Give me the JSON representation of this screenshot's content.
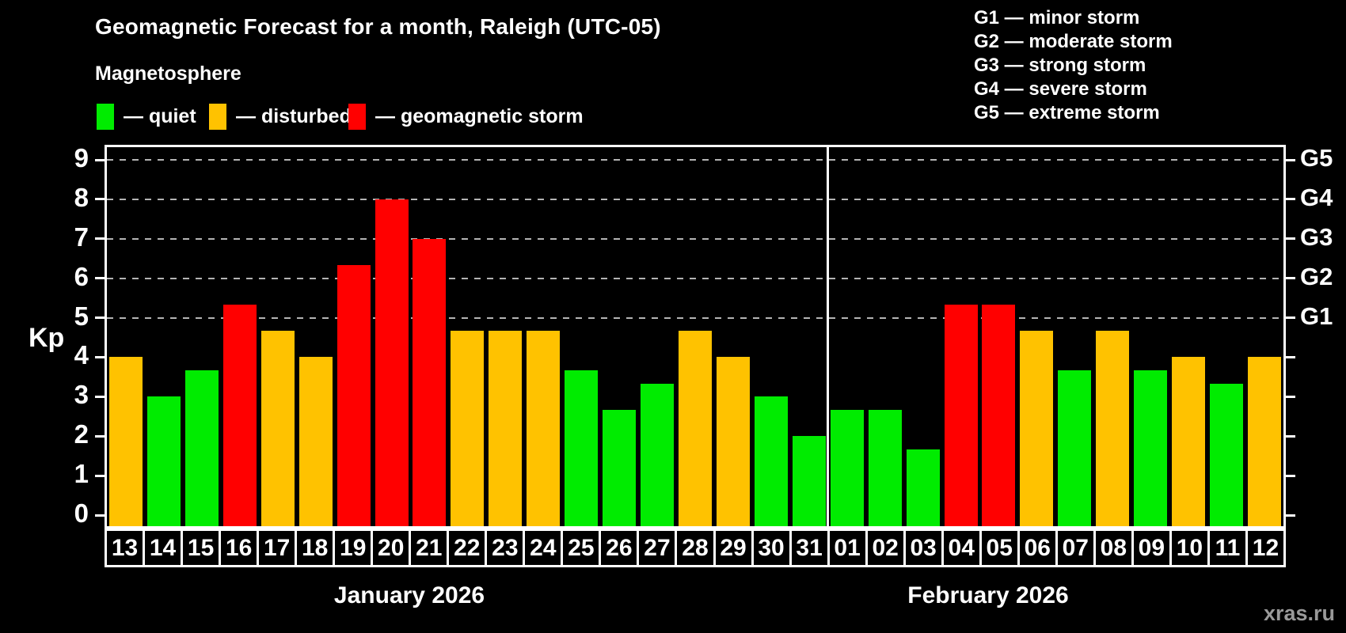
{
  "title": "Geomagnetic Forecast for a month, Raleigh (UTC-05)",
  "subtitle": "Magnetosphere",
  "watermark": "xras.ru",
  "colors": {
    "quiet": "#00EC00",
    "disturbed": "#FFC200",
    "storm": "#FF0000",
    "axis": "#FFFFFF",
    "grid": "#B4B4B4",
    "watermark": "#999999"
  },
  "legend": {
    "items": [
      {
        "status": "quiet",
        "label": "— quiet"
      },
      {
        "status": "disturbed",
        "label": "— disturbed"
      },
      {
        "status": "storm",
        "label": "— geomagnetic storm"
      }
    ]
  },
  "g_legend": {
    "items": [
      "G1 — minor storm",
      "G2 — moderate storm",
      "G3 — strong storm",
      "G4 — severe storm",
      "G5 — extreme storm"
    ]
  },
  "axes": {
    "kp_label": "Kp",
    "left_ticks": [
      "0",
      "1",
      "2",
      "3",
      "4",
      "5",
      "6",
      "7",
      "8",
      "9"
    ],
    "right_labels": [
      {
        "label": "G1",
        "kp": 5
      },
      {
        "label": "G2",
        "kp": 6
      },
      {
        "label": "G3",
        "kp": 7
      },
      {
        "label": "G4",
        "kp": 8
      },
      {
        "label": "G5",
        "kp": 9
      }
    ]
  },
  "chart_data": {
    "type": "bar",
    "title": "Geomagnetic Forecast for a month, Raleigh (UTC-05)",
    "ylabel": "Kp",
    "ylim": [
      0,
      9
    ],
    "grid": "dashed horizontal lines at Kp 5,6,7,8,9 matching G1–G5",
    "legend_position": "top",
    "months": [
      {
        "label": "January 2026",
        "days": [
          {
            "day": "13",
            "kp": 4.0,
            "status": "disturbed"
          },
          {
            "day": "14",
            "kp": 3.0,
            "status": "quiet"
          },
          {
            "day": "15",
            "kp": 3.67,
            "status": "quiet"
          },
          {
            "day": "16",
            "kp": 5.33,
            "status": "storm"
          },
          {
            "day": "17",
            "kp": 4.67,
            "status": "disturbed"
          },
          {
            "day": "18",
            "kp": 4.0,
            "status": "disturbed"
          },
          {
            "day": "19",
            "kp": 6.33,
            "status": "storm"
          },
          {
            "day": "20",
            "kp": 8.0,
            "status": "storm"
          },
          {
            "day": "21",
            "kp": 7.0,
            "status": "storm"
          },
          {
            "day": "22",
            "kp": 4.67,
            "status": "disturbed"
          },
          {
            "day": "23",
            "kp": 4.67,
            "status": "disturbed"
          },
          {
            "day": "24",
            "kp": 4.67,
            "status": "disturbed"
          },
          {
            "day": "25",
            "kp": 3.67,
            "status": "quiet"
          },
          {
            "day": "26",
            "kp": 2.67,
            "status": "quiet"
          },
          {
            "day": "27",
            "kp": 3.33,
            "status": "quiet"
          },
          {
            "day": "28",
            "kp": 4.67,
            "status": "disturbed"
          },
          {
            "day": "29",
            "kp": 4.0,
            "status": "disturbed"
          },
          {
            "day": "30",
            "kp": 3.0,
            "status": "quiet"
          },
          {
            "day": "31",
            "kp": 2.0,
            "status": "quiet"
          }
        ]
      },
      {
        "label": "February 2026",
        "days": [
          {
            "day": "01",
            "kp": 2.67,
            "status": "quiet"
          },
          {
            "day": "02",
            "kp": 2.67,
            "status": "quiet"
          },
          {
            "day": "03",
            "kp": 1.67,
            "status": "quiet"
          },
          {
            "day": "04",
            "kp": 5.33,
            "status": "storm"
          },
          {
            "day": "05",
            "kp": 5.33,
            "status": "storm"
          },
          {
            "day": "06",
            "kp": 4.67,
            "status": "disturbed"
          },
          {
            "day": "07",
            "kp": 3.67,
            "status": "quiet"
          },
          {
            "day": "08",
            "kp": 4.67,
            "status": "disturbed"
          },
          {
            "day": "09",
            "kp": 3.67,
            "status": "quiet"
          },
          {
            "day": "10",
            "kp": 4.0,
            "status": "disturbed"
          },
          {
            "day": "11",
            "kp": 3.33,
            "status": "quiet"
          },
          {
            "day": "12",
            "kp": 4.0,
            "status": "disturbed"
          }
        ]
      }
    ]
  }
}
